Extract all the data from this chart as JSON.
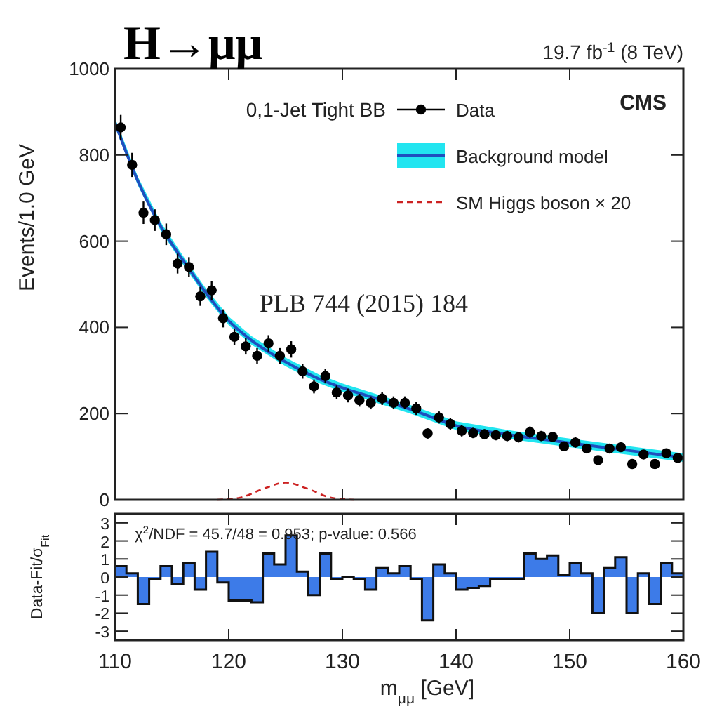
{
  "chart_data": [
    {
      "type": "scatter",
      "title": "H→μμ",
      "ylabel": "Events/1.0 GeV",
      "legend_title": "0,1-Jet Tight BB",
      "legend": "top right",
      "annotations": [
        "19.7 fb$^{-1}$ (8 TeV)",
        "CMS",
        "PLB 744 (2015) 184"
      ],
      "xlim": [
        110,
        160
      ],
      "xticks": [
        110,
        120,
        130,
        140,
        150,
        160
      ],
      "ylim": [
        0,
        1000
      ],
      "yticks": [
        0,
        200,
        400,
        600,
        800,
        1000
      ],
      "tick_labels": "y",
      "x": [
        110.5,
        111.5,
        112.5,
        113.5,
        114.5,
        115.5,
        116.5,
        117.5,
        118.5,
        119.5,
        120.5,
        121.5,
        122.5,
        123.5,
        124.5,
        125.5,
        126.5,
        127.5,
        128.5,
        129.5,
        130.5,
        131.5,
        132.5,
        133.5,
        134.5,
        135.5,
        136.5,
        137.5,
        138.5,
        139.5,
        140.5,
        141.5,
        142.5,
        143.5,
        144.5,
        145.5,
        146.5,
        147.5,
        148.5,
        149.5,
        150.5,
        151.5,
        152.5,
        153.5,
        154.5,
        155.5,
        156.5,
        157.5,
        158.5,
        159.5
      ],
      "series": [
        {
          "name": "Data",
          "type": "scatter",
          "marker": "circle",
          "color": "#000000",
          "values": [
            864,
            777,
            666,
            649,
            616,
            548,
            540,
            472,
            486,
            421,
            378,
            356,
            334,
            363,
            334,
            349,
            298,
            263,
            287,
            249,
            242,
            231,
            225,
            235,
            225,
            225,
            212,
            154,
            191,
            176,
            160,
            155,
            152,
            150,
            148,
            145,
            157,
            148,
            146,
            124,
            133,
            119,
            92,
            119,
            122,
            83,
            105,
            83,
            108,
            97
          ],
          "errors": [
            29,
            28,
            26,
            25,
            25,
            23,
            23,
            22,
            22,
            21,
            19,
            19,
            18,
            19,
            18,
            19,
            17,
            16,
            17,
            16,
            16,
            15,
            15,
            15,
            15,
            15,
            15,
            12,
            14,
            13,
            13,
            12,
            12,
            12,
            12,
            12,
            13,
            12,
            12,
            11,
            12,
            11,
            10,
            11,
            11,
            9,
            10,
            9,
            10,
            10
          ]
        },
        {
          "name": "Background model",
          "type": "line",
          "color": "#1f4fbf",
          "x": [
            110,
            112,
            114,
            116,
            118,
            120,
            122,
            125,
            128,
            130,
            133,
            136,
            140,
            145,
            150,
            155,
            160
          ],
          "values": [
            875,
            740,
            635,
            555,
            480,
            415,
            370,
            320,
            280,
            260,
            235,
            210,
            172,
            150,
            132,
            115,
            98
          ],
          "lower": [
            865,
            730,
            625,
            545,
            470,
            405,
            360,
            310,
            270,
            250,
            225,
            200,
            162,
            140,
            122,
            105,
            88
          ],
          "upper": [
            885,
            750,
            645,
            565,
            490,
            425,
            380,
            330,
            290,
            270,
            245,
            220,
            182,
            160,
            142,
            125,
            108
          ]
        },
        {
          "name": "SM Higgs boson × 20",
          "type": "line",
          "line_style": "dashed",
          "color": "#cc2222",
          "x": [
            119,
            121,
            123,
            125,
            127,
            129,
            131
          ],
          "values": [
            0,
            5,
            25,
            40,
            25,
            5,
            0
          ]
        }
      ]
    },
    {
      "type": "histogram",
      "xlabel": "m$_{μμ}$ [GeV]",
      "ylabel": "Data-Fit/σ$_{Fit}$",
      "color": "#3d7be8",
      "annotations": [
        "χ$^{2}$/NDF = 45.7/48 = 0.953; p-value: 0.566"
      ],
      "xlim": [
        110,
        160
      ],
      "xticks": [
        110,
        120,
        130,
        140,
        150,
        160
      ],
      "ylim": [
        -3.5,
        3.5
      ],
      "yticks": [
        -3,
        -2,
        -1,
        0,
        1,
        2,
        3
      ],
      "bins": [
        110,
        111,
        112,
        113,
        114,
        115,
        116,
        117,
        118,
        119,
        120,
        121,
        122,
        123,
        124,
        125,
        126,
        127,
        128,
        129,
        130,
        131,
        132,
        133,
        134,
        135,
        136,
        137,
        138,
        139,
        140,
        141,
        142,
        143,
        144,
        145,
        146,
        147,
        148,
        149,
        150,
        151,
        152,
        153,
        154,
        155,
        156,
        157,
        158,
        159,
        160
      ],
      "values": [
        0.6,
        0.2,
        -1.5,
        -0.1,
        0.6,
        -0.4,
        0.8,
        -0.7,
        1.4,
        -0.3,
        -1.3,
        -1.3,
        -1.4,
        1.3,
        0.7,
        2.3,
        0.3,
        -1.0,
        1.3,
        -0.1,
        0,
        -0.1,
        -0.7,
        0.5,
        0.2,
        0.6,
        -0.1,
        -2.4,
        0.7,
        0.2,
        -0.7,
        -0.6,
        -0.5,
        -0.1,
        -0.1,
        -0.1,
        1.3,
        1.0,
        1.2,
        0.1,
        0.8,
        0.2,
        -2.0,
        0.5,
        1.1,
        -2.0,
        0.2,
        -1.5,
        0.8,
        0.2
      ]
    }
  ]
}
